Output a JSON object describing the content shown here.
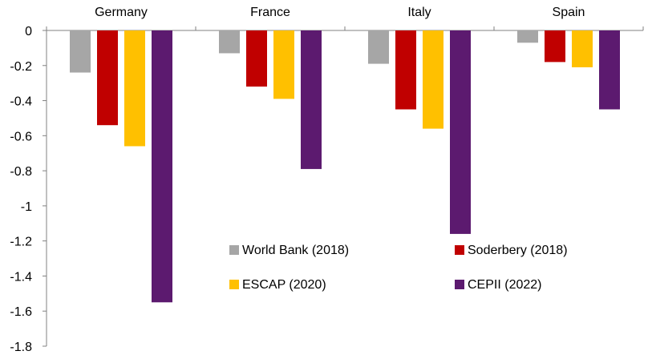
{
  "chart_data": {
    "type": "bar",
    "categories": [
      "Germany",
      "France",
      "Italy",
      "Spain"
    ],
    "series": [
      {
        "name": "World Bank (2018)",
        "color": "#a6a6a6",
        "values": [
          -0.24,
          -0.13,
          -0.19,
          -0.07
        ]
      },
      {
        "name": "Soderbery (2018)",
        "color": "#c00000",
        "values": [
          -0.54,
          -0.32,
          -0.45,
          -0.18
        ]
      },
      {
        "name": "ESCAP (2020)",
        "color": "#ffc000",
        "values": [
          -0.66,
          -0.39,
          -0.56,
          -0.21
        ]
      },
      {
        "name": "CEPII (2022)",
        "color": "#5c1a6f",
        "values": [
          -1.55,
          -0.79,
          -1.16,
          -0.45
        ]
      }
    ],
    "ylim": [
      -1.8,
      0
    ],
    "yticks": [
      "0",
      "-0.2",
      "-0.4",
      "-0.6",
      "-0.8",
      "-1",
      "-1.2",
      "-1.4",
      "-1.6",
      "-1.8"
    ],
    "category_axis_position": "top",
    "grid": false,
    "legend_position": "lower-right"
  }
}
